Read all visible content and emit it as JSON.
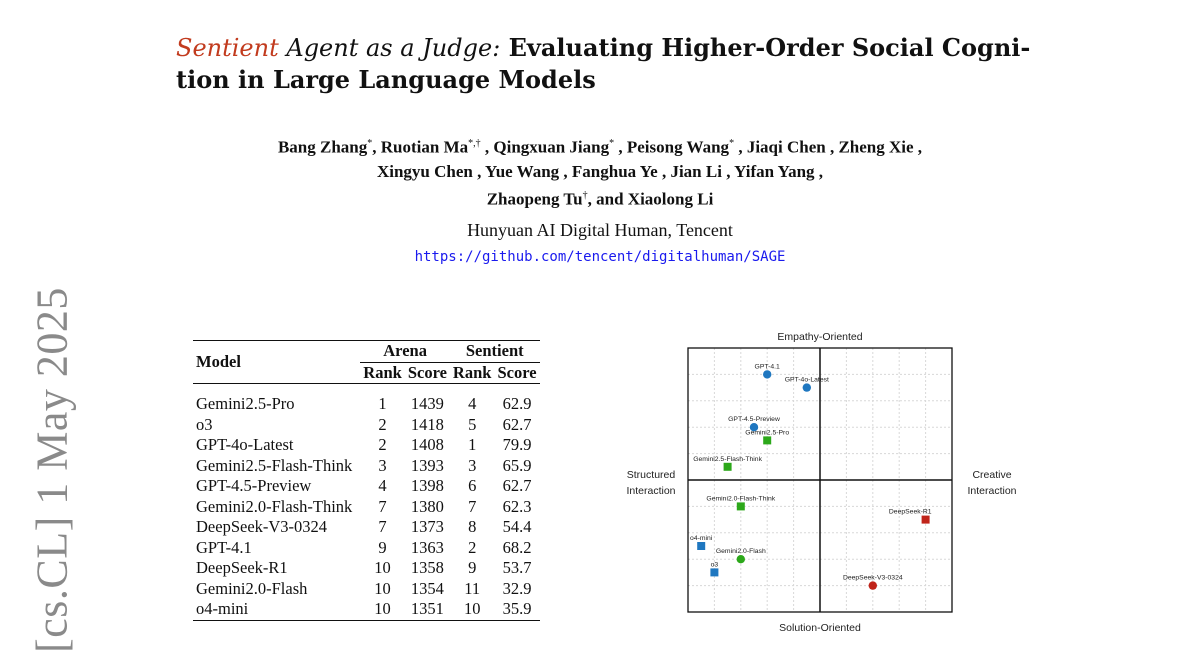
{
  "side_stamp": "[cs.CL]  1 May 2025",
  "title": {
    "accent": "Sentient",
    "italic": " Agent as a Judge:",
    "rest_line1": " Evaluating Higher-Order Social Cogni-",
    "line2": "tion in Large Language Models"
  },
  "authors": {
    "line1_a": "Bang Zhang",
    "line1_a_sup": "*",
    "line1_b": ", Ruotian Ma",
    "line1_b_sup": "*,†",
    "line1_c": " , Qingxuan Jiang",
    "line1_c_sup": "*",
    "line1_d": " , Peisong Wang",
    "line1_d_sup": "*",
    "line1_e": " , Jiaqi Chen , Zheng Xie ,",
    "line2": "Xingyu Chen , Yue Wang , Fanghua Ye , Jian Li , Yifan Yang ,",
    "line3_a": "Zhaopeng Tu",
    "line3_a_sup": "†",
    "line3_b": ", and Xiaolong Li"
  },
  "affiliation": "Hunyuan AI Digital Human, Tencent",
  "repo_url": "https://github.com/tencent/digitalhuman/SAGE",
  "table": {
    "col_model": "Model",
    "group_arena": "Arena",
    "group_sentient": "Sentient",
    "sub_rank": "Rank",
    "sub_score": "Score",
    "rows": [
      [
        "Gemini2.5-Pro",
        "1",
        "1439",
        "4",
        "62.9"
      ],
      [
        "o3",
        "2",
        "1418",
        "5",
        "62.7"
      ],
      [
        "GPT-4o-Latest",
        "2",
        "1408",
        "1",
        "79.9"
      ],
      [
        "Gemini2.5-Flash-Think",
        "3",
        "1393",
        "3",
        "65.9"
      ],
      [
        "GPT-4.5-Preview",
        "4",
        "1398",
        "6",
        "62.7"
      ],
      [
        "Gemini2.0-Flash-Think",
        "7",
        "1380",
        "7",
        "62.3"
      ],
      [
        "DeepSeek-V3-0324",
        "7",
        "1373",
        "8",
        "54.4"
      ],
      [
        "GPT-4.1",
        "9",
        "1363",
        "2",
        "68.2"
      ],
      [
        "DeepSeek-R1",
        "10",
        "1358",
        "9",
        "53.7"
      ],
      [
        "Gemini2.0-Flash",
        "10",
        "1354",
        "11",
        "32.9"
      ],
      [
        "o4-mini",
        "10",
        "1351",
        "10",
        "35.9"
      ]
    ]
  },
  "chart_data": {
    "type": "scatter",
    "axis_top": "Empathy-Oriented",
    "axis_bottom": "Solution-Oriented",
    "axis_left_line1": "Structured",
    "axis_left_line2": "Interaction",
    "axis_right_line1": "Creative",
    "axis_right_line2": "Interaction",
    "xlim": [
      -5,
      5
    ],
    "ylim": [
      -5,
      5
    ],
    "grid": true,
    "colors": {
      "openai": "#1f77c0",
      "google": "#2ca81a",
      "deepseek": "#c0241a"
    },
    "points": [
      {
        "label": "GPT-4.1",
        "x": -2.0,
        "y": 4.0,
        "shape": "circle",
        "group": "openai"
      },
      {
        "label": "GPT-4o-Latest",
        "x": -0.5,
        "y": 3.5,
        "shape": "circle",
        "group": "openai"
      },
      {
        "label": "GPT-4.5-Preview",
        "x": -2.5,
        "y": 2.0,
        "shape": "circle",
        "group": "openai"
      },
      {
        "label": "Gemini2.5-Pro",
        "x": -2.0,
        "y": 1.5,
        "shape": "square",
        "group": "google"
      },
      {
        "label": "Gemini2.5-Flash-Think",
        "x": -3.5,
        "y": 0.5,
        "shape": "square",
        "group": "google"
      },
      {
        "label": "Gemini2.0-Flash-Think",
        "x": -3.0,
        "y": -1.0,
        "shape": "square",
        "group": "google"
      },
      {
        "label": "DeepSeek-R1",
        "x": 4.0,
        "y": -1.5,
        "shape": "square",
        "group": "deepseek"
      },
      {
        "label": "o4-mini",
        "x": -4.5,
        "y": -2.5,
        "shape": "square",
        "group": "openai"
      },
      {
        "label": "Gemini2.0-Flash",
        "x": -3.0,
        "y": -3.0,
        "shape": "circle",
        "group": "google"
      },
      {
        "label": "o3",
        "x": -4.0,
        "y": -3.5,
        "shape": "square",
        "group": "openai"
      },
      {
        "label": "DeepSeek-V3-0324",
        "x": 2.0,
        "y": -4.0,
        "shape": "circle",
        "group": "deepseek"
      }
    ]
  }
}
